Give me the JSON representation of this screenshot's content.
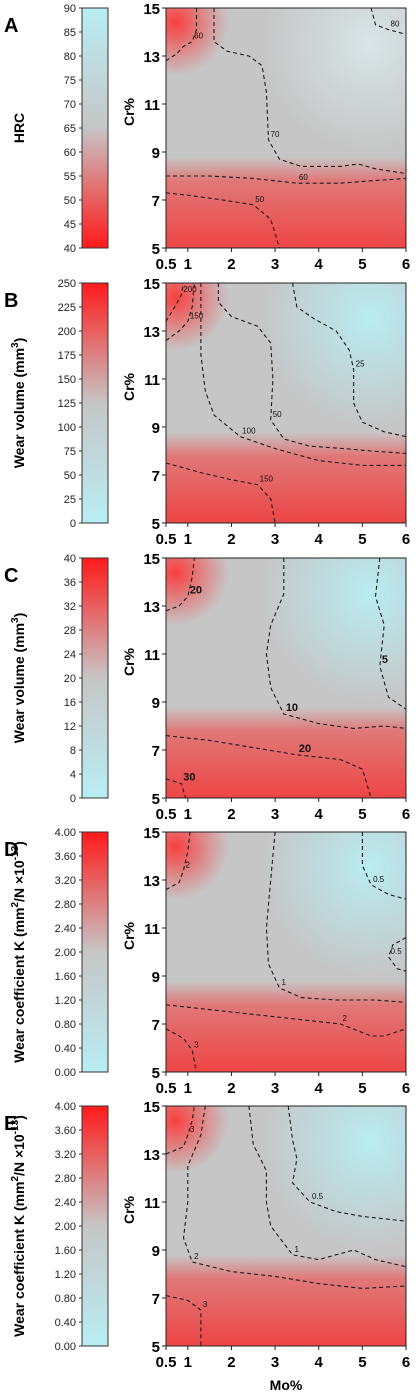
{
  "figure": {
    "x_axis_title": "Mo%",
    "y_axis_title": "Cr%",
    "x_ticks": [
      "0.5",
      "1",
      "2",
      "3",
      "4",
      "5",
      "6"
    ],
    "y_ticks": [
      "5",
      "7",
      "9",
      "11",
      "13",
      "15"
    ],
    "colors": {
      "low": "#b8eef3",
      "mid": "#c6c6c6",
      "high": "#ff1a1a",
      "line": "#1a1a1a"
    }
  },
  "chart_data": [
    {
      "type": "heatmap",
      "panel": "A",
      "colorbar_label": "HRC",
      "colorbar_ticks": [
        "40",
        "45",
        "50",
        "55",
        "60",
        "65",
        "70",
        "75",
        "80",
        "85",
        "90"
      ],
      "colorbar_range": [
        40,
        90
      ],
      "colorbar_top_color": "low",
      "xlabel": "",
      "ylabel": "Cr%",
      "xlim": [
        0.5,
        6
      ],
      "ylim": [
        5,
        15
      ],
      "contours": [
        {
          "label": "60",
          "points": [
            [
              0.5,
              12.8
            ],
            [
              0.75,
              13.1
            ],
            [
              0.9,
              13.4
            ],
            [
              1.1,
              13.6
            ],
            [
              1.2,
              14.1
            ],
            [
              1.2,
              15
            ]
          ]
        },
        {
          "label": "70",
          "points": [
            [
              1.6,
              15
            ],
            [
              1.6,
              13.6
            ],
            [
              1.9,
              13.2
            ],
            [
              2.4,
              13
            ],
            [
              2.7,
              12.6
            ],
            [
              2.8,
              11.5
            ],
            [
              2.85,
              9.5
            ],
            [
              3.1,
              8.7
            ],
            [
              3.6,
              8.4
            ],
            [
              4.5,
              8.4
            ],
            [
              4.9,
              8.5
            ],
            [
              5.3,
              8.3
            ],
            [
              6,
              8.1
            ]
          ]
        },
        {
          "label": "80",
          "points": [
            [
              5.2,
              15
            ],
            [
              5.3,
              14.3
            ],
            [
              5.6,
              14.1
            ],
            [
              6,
              13.9
            ]
          ]
        },
        {
          "label": "60",
          "points": [
            [
              0.5,
              8
            ],
            [
              1.5,
              8.0
            ],
            [
              2.5,
              7.9
            ],
            [
              3.5,
              7.7
            ],
            [
              4.5,
              7.7
            ],
            [
              5.2,
              7.8
            ],
            [
              6,
              7.9
            ]
          ]
        },
        {
          "label": "50",
          "points": [
            [
              0.5,
              7.3
            ],
            [
              1,
              7.2
            ],
            [
              1.8,
              7
            ],
            [
              2.5,
              6.8
            ],
            [
              2.9,
              6.2
            ],
            [
              3.0,
              5.6
            ],
            [
              3.1,
              5
            ]
          ]
        }
      ]
    },
    {
      "type": "heatmap",
      "panel": "B",
      "colorbar_label": "Wear volume (mm",
      "colorbar_label_sup": "3",
      "colorbar_label_end": ")",
      "colorbar_ticks": [
        "0",
        "25",
        "50",
        "75",
        "100",
        "125",
        "150",
        "175",
        "200",
        "225",
        "250"
      ],
      "colorbar_range": [
        0,
        250
      ],
      "colorbar_top_color": "high",
      "xlabel": "",
      "ylabel": "Cr%",
      "xlim": [
        0.5,
        6
      ],
      "ylim": [
        5,
        15
      ],
      "contours": [
        {
          "label": "200",
          "points": [
            [
              0.5,
              13.4
            ],
            [
              0.7,
              14
            ],
            [
              0.85,
              14.5
            ],
            [
              0.9,
              15
            ]
          ]
        },
        {
          "label": "150",
          "points": [
            [
              0.5,
              12.6
            ],
            [
              0.8,
              13
            ],
            [
              1.0,
              13.4
            ],
            [
              1.1,
              14
            ],
            [
              1.15,
              15
            ]
          ]
        },
        {
          "label": "50",
          "points": [
            [
              1.7,
              15
            ],
            [
              1.7,
              14.2
            ],
            [
              2,
              13.6
            ],
            [
              2.6,
              13.2
            ],
            [
              2.9,
              12.5
            ],
            [
              2.95,
              11
            ],
            [
              2.9,
              9.3
            ],
            [
              3.2,
              8.5
            ],
            [
              3.8,
              8.2
            ],
            [
              4.6,
              8.1
            ],
            [
              5.2,
              8
            ],
            [
              6,
              7.9
            ]
          ]
        },
        {
          "label": "25",
          "points": [
            [
              3.4,
              15
            ],
            [
              3.5,
              14
            ],
            [
              3.9,
              13.5
            ],
            [
              4.4,
              13
            ],
            [
              4.7,
              12.2
            ],
            [
              4.8,
              11.4
            ],
            [
              4.8,
              10
            ],
            [
              5,
              9.2
            ],
            [
              5.5,
              8.8
            ],
            [
              6,
              8.6
            ]
          ]
        },
        {
          "label": "100",
          "points": [
            [
              1.3,
              15
            ],
            [
              1.3,
              12
            ],
            [
              1.4,
              10.5
            ],
            [
              1.6,
              9.5
            ],
            [
              2.2,
              8.6
            ],
            [
              3,
              8.1
            ],
            [
              4,
              7.6
            ],
            [
              5,
              7.4
            ],
            [
              6,
              7.4
            ]
          ]
        },
        {
          "label": "150",
          "points": [
            [
              0.5,
              7.5
            ],
            [
              1.3,
              7.1
            ],
            [
              2,
              6.8
            ],
            [
              2.6,
              6.6
            ],
            [
              2.9,
              6
            ],
            [
              3.0,
              5
            ]
          ]
        }
      ]
    },
    {
      "type": "heatmap",
      "panel": "C",
      "colorbar_label": "Wear volume (mm",
      "colorbar_label_sup": "3",
      "colorbar_label_end": ")",
      "colorbar_ticks": [
        "0",
        "4",
        "8",
        "12",
        "16",
        "20",
        "24",
        "28",
        "32",
        "36",
        "40"
      ],
      "colorbar_range": [
        0,
        40
      ],
      "colorbar_top_color": "high",
      "xlabel": "",
      "ylabel": "Cr%",
      "xlim": [
        0.5,
        6
      ],
      "ylim": [
        5,
        15
      ],
      "contours": [
        {
          "label": "20",
          "points": [
            [
              0.5,
              12.8
            ],
            [
              0.8,
              13
            ],
            [
              1,
              13.4
            ],
            [
              1.1,
              14.2
            ],
            [
              1.15,
              15
            ]
          ]
        },
        {
          "label": "10",
          "points": [
            [
              3.2,
              15
            ],
            [
              3.2,
              13.5
            ],
            [
              2.9,
              12.2
            ],
            [
              2.8,
              11
            ],
            [
              2.9,
              9.6
            ],
            [
              3.2,
              8.5
            ],
            [
              4,
              8.1
            ],
            [
              4.8,
              7.9
            ],
            [
              5.5,
              8
            ],
            [
              6,
              7.9
            ]
          ]
        },
        {
          "label": "5",
          "points": [
            [
              5.4,
              15
            ],
            [
              5.3,
              13.4
            ],
            [
              5.5,
              12.2
            ],
            [
              5.4,
              10.5
            ],
            [
              5.6,
              9.2
            ],
            [
              6,
              8.7
            ]
          ]
        },
        {
          "label": "20",
          "points": [
            [
              0.5,
              7.6
            ],
            [
              1.5,
              7.4
            ],
            [
              2.5,
              7.1
            ],
            [
              3.5,
              6.8
            ],
            [
              4.5,
              6.6
            ],
            [
              5,
              6.2
            ],
            [
              5.2,
              5
            ]
          ]
        },
        {
          "label": "30",
          "points": [
            [
              0.5,
              5.8
            ],
            [
              0.85,
              5.6
            ],
            [
              0.95,
              5
            ]
          ]
        }
      ]
    },
    {
      "type": "heatmap",
      "panel": "D",
      "colorbar_label": "Wear coefficient K (mm",
      "colorbar_label_sup": "2",
      "colorbar_label_end": "/N ×10",
      "colorbar_label_sup2": "-13",
      "colorbar_label_end2": ")",
      "colorbar_ticks": [
        "0.00",
        "0.40",
        "0.80",
        "1.20",
        "1.60",
        "2.00",
        "2.40",
        "2.80",
        "3.20",
        "3.60",
        "4.00"
      ],
      "colorbar_range": [
        0,
        4
      ],
      "colorbar_top_color": "high",
      "xlabel": "",
      "ylabel": "Cr%",
      "xlim": [
        0.5,
        6
      ],
      "ylim": [
        5,
        15
      ],
      "contours": [
        {
          "label": "2",
          "points": [
            [
              0.5,
              12.6
            ],
            [
              0.8,
              12.9
            ],
            [
              0.9,
              13.4
            ],
            [
              1.0,
              14.2
            ],
            [
              1.05,
              15
            ]
          ]
        },
        {
          "label": "1",
          "points": [
            [
              3.0,
              15
            ],
            [
              2.9,
              13
            ],
            [
              2.8,
              11
            ],
            [
              2.85,
              9.5
            ],
            [
              3.1,
              8.5
            ],
            [
              3.6,
              8.1
            ],
            [
              4.4,
              8
            ],
            [
              5.3,
              8
            ],
            [
              6,
              7.9
            ]
          ]
        },
        {
          "label": "0.5",
          "points": [
            [
              5.0,
              15
            ],
            [
              5.0,
              13.6
            ],
            [
              5.2,
              12.8
            ],
            [
              5.6,
              12.4
            ],
            [
              6,
              12.2
            ]
          ]
        },
        {
          "label": "0.5",
          "points": [
            [
              6,
              10.6
            ],
            [
              5.7,
              10.3
            ],
            [
              5.6,
              9.8
            ],
            [
              5.8,
              9.3
            ],
            [
              6,
              9.2
            ]
          ]
        },
        {
          "label": "2",
          "points": [
            [
              0.5,
              7.8
            ],
            [
              1.5,
              7.6
            ],
            [
              2.5,
              7.4
            ],
            [
              3.5,
              7.2
            ],
            [
              4.5,
              7
            ],
            [
              5.2,
              6.5
            ],
            [
              5.5,
              6.5
            ],
            [
              6,
              6.8
            ]
          ]
        },
        {
          "label": "3",
          "points": [
            [
              0.5,
              6.8
            ],
            [
              0.9,
              6.4
            ],
            [
              1.1,
              5.9
            ],
            [
              1.2,
              5
            ]
          ]
        }
      ]
    },
    {
      "type": "heatmap",
      "panel": "E",
      "colorbar_label": "Wear coefficient K (mm",
      "colorbar_label_sup": "2",
      "colorbar_label_end": "/N ×10",
      "colorbar_label_sup2": "-13",
      "colorbar_label_end2": ")",
      "colorbar_ticks": [
        "0.00",
        "0.40",
        "0.80",
        "1.20",
        "1.60",
        "2.00",
        "2.40",
        "2.80",
        "3.20",
        "3.60",
        "4.00"
      ],
      "colorbar_range": [
        0,
        4
      ],
      "colorbar_top_color": "high",
      "xlabel": "Mo%",
      "ylabel": "Cr%",
      "xlim": [
        0.5,
        6
      ],
      "ylim": [
        5,
        15
      ],
      "contours": [
        {
          "label": "3",
          "points": [
            [
              0.5,
              13
            ],
            [
              0.9,
              13.3
            ],
            [
              1.0,
              13.8
            ],
            [
              1.1,
              14.4
            ],
            [
              1.15,
              15
            ]
          ]
        },
        {
          "label": "1",
          "points": [
            [
              2.4,
              15
            ],
            [
              2.5,
              13.4
            ],
            [
              2.8,
              12.3
            ],
            [
              2.8,
              11
            ],
            [
              2.9,
              10
            ],
            [
              3.4,
              8.8
            ],
            [
              4,
              8.6
            ],
            [
              4.8,
              9
            ],
            [
              5.3,
              8.6
            ],
            [
              6,
              8.3
            ]
          ]
        },
        {
          "label": "0.5",
          "points": [
            [
              3.3,
              15
            ],
            [
              3.4,
              13.6
            ],
            [
              3.5,
              12.8
            ],
            [
              3.4,
              11.8
            ],
            [
              3.8,
              11
            ],
            [
              4.4,
              10.6
            ],
            [
              5,
              10.4
            ],
            [
              6,
              10.2
            ]
          ]
        },
        {
          "label": "2",
          "points": [
            [
              1.4,
              15
            ],
            [
              1.3,
              13.8
            ],
            [
              1.0,
              12.5
            ],
            [
              1.0,
              11
            ],
            [
              0.9,
              9.5
            ],
            [
              1.1,
              8.5
            ],
            [
              2,
              8.1
            ],
            [
              3,
              7.9
            ],
            [
              4,
              7.6
            ],
            [
              5,
              7.4
            ],
            [
              6,
              7.5
            ]
          ]
        },
        {
          "label": "3",
          "points": [
            [
              0.5,
              7.1
            ],
            [
              1.0,
              6.9
            ],
            [
              1.3,
              6.5
            ],
            [
              1.3,
              5
            ]
          ]
        }
      ]
    }
  ]
}
